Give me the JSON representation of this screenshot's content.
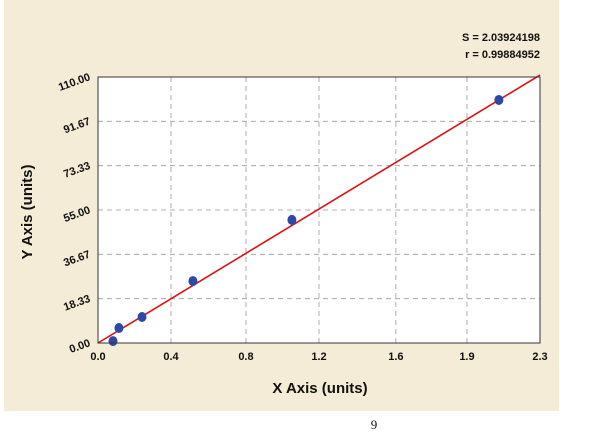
{
  "chart_data": {
    "type": "scatter",
    "x_label": "X Axis (units)",
    "y_label": "Y Axis (units)",
    "annotations": [
      "S = 2.03924198",
      "r = 0.99884952"
    ],
    "x": [
      0.078,
      0.109,
      0.229,
      0.494,
      1.009,
      2.086
    ],
    "values": [
      0.8,
      6.2,
      10.75,
      25.6,
      50.9,
      100.5
    ],
    "color": "#2f48a8",
    "fit": {
      "x": [
        0,
        2.3
      ],
      "values": [
        0,
        110.8
      ],
      "color": "#e01010"
    },
    "xlim": [
      0,
      2.3
    ],
    "xticks": [
      {
        "value": 0,
        "label": "0.0"
      },
      {
        "value": 0.38,
        "label": "0.4"
      },
      {
        "value": 0.77,
        "label": "0.8"
      },
      {
        "value": 1.15,
        "label": "1.2"
      },
      {
        "value": 1.55,
        "label": "1.6"
      },
      {
        "value": 1.92,
        "label": "1.9"
      },
      2.3
    ],
    "ylim": [
      0,
      110
    ],
    "yticks": [
      {
        "value": 0,
        "label": "0.00"
      },
      18.33,
      36.67,
      {
        "value": 55,
        "label": "55.00"
      },
      73.33,
      91.67,
      {
        "value": 110,
        "label": "110.00"
      }
    ],
    "grid": true
  },
  "page_number": "9"
}
